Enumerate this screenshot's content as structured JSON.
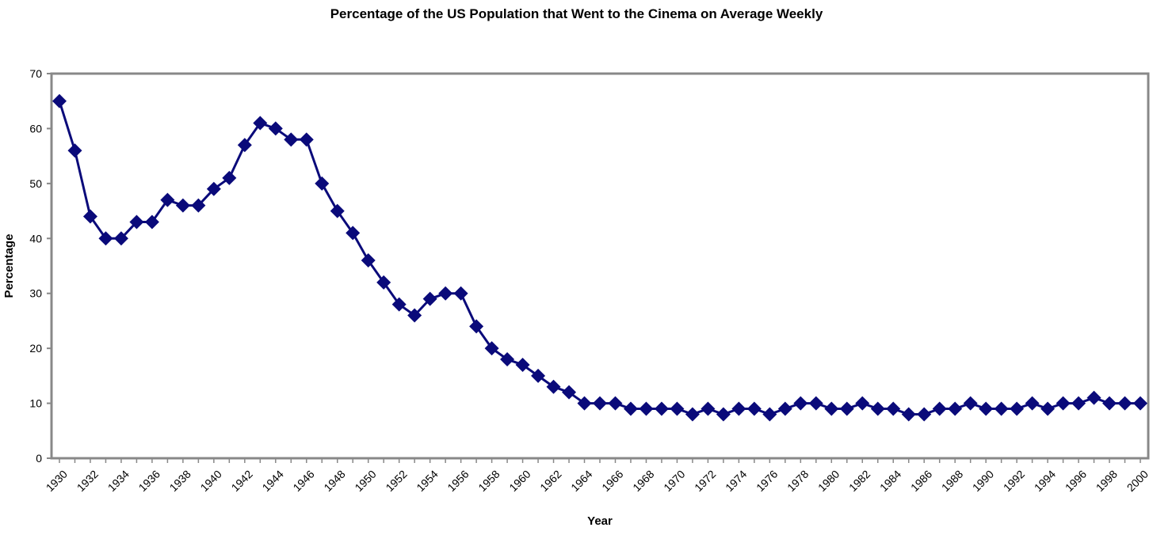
{
  "chart_data": {
    "type": "line",
    "title": "Percentage of the US Population that Went to the Cinema on Average Weekly",
    "xlabel": "Year",
    "ylabel": "Percentage",
    "ylim": [
      0,
      70
    ],
    "yticks": [
      0,
      10,
      20,
      30,
      40,
      50,
      60,
      70
    ],
    "xlim": [
      1930,
      2000
    ],
    "xticks": [
      "1930",
      "1932",
      "1934",
      "1936",
      "1938",
      "1940",
      "1942",
      "1944",
      "1946",
      "1948",
      "1950",
      "1952",
      "1954",
      "1956",
      "1958",
      "1960",
      "1962",
      "1964",
      "1966",
      "1968",
      "1970",
      "1972",
      "1974",
      "1976",
      "1978",
      "1980",
      "1982",
      "1984",
      "1986",
      "1988",
      "1990",
      "1992",
      "1994",
      "1996",
      "1998",
      "2000"
    ],
    "grid": false,
    "legend": "none",
    "marker": "diamond",
    "color": "#0a0a7a",
    "series": [
      {
        "x": [
          1930,
          1931,
          1932,
          1933,
          1934,
          1935,
          1936,
          1937,
          1938,
          1939,
          1940,
          1941,
          1942,
          1943,
          1944,
          1945,
          1946,
          1947,
          1948,
          1949,
          1950,
          1951,
          1952,
          1953,
          1954,
          1955,
          1956,
          1957,
          1958,
          1959,
          1960,
          1961,
          1962,
          1963,
          1964,
          1965,
          1966,
          1967,
          1968,
          1969,
          1970,
          1971,
          1972,
          1973,
          1974,
          1975,
          1976,
          1977,
          1978,
          1979,
          1980,
          1981,
          1982,
          1983,
          1984,
          1985,
          1986,
          1987,
          1988,
          1989,
          1990,
          1991,
          1992,
          1993,
          1994,
          1995,
          1996,
          1997,
          1998,
          1999,
          2000
        ],
        "values": [
          65,
          56,
          44,
          40,
          40,
          43,
          43,
          47,
          46,
          46,
          49,
          51,
          57,
          61,
          60,
          58,
          58,
          50,
          45,
          41,
          36,
          32,
          28,
          26,
          29,
          30,
          30,
          24,
          20,
          18,
          17,
          15,
          13,
          12,
          10,
          10,
          10,
          9,
          9,
          9,
          9,
          8,
          9,
          8,
          9,
          9,
          8,
          9,
          10,
          10,
          9,
          9,
          10,
          9,
          9,
          8,
          8,
          9,
          9,
          10,
          9,
          9,
          9,
          10,
          9,
          10,
          10,
          11,
          10,
          10,
          10
        ]
      }
    ]
  }
}
